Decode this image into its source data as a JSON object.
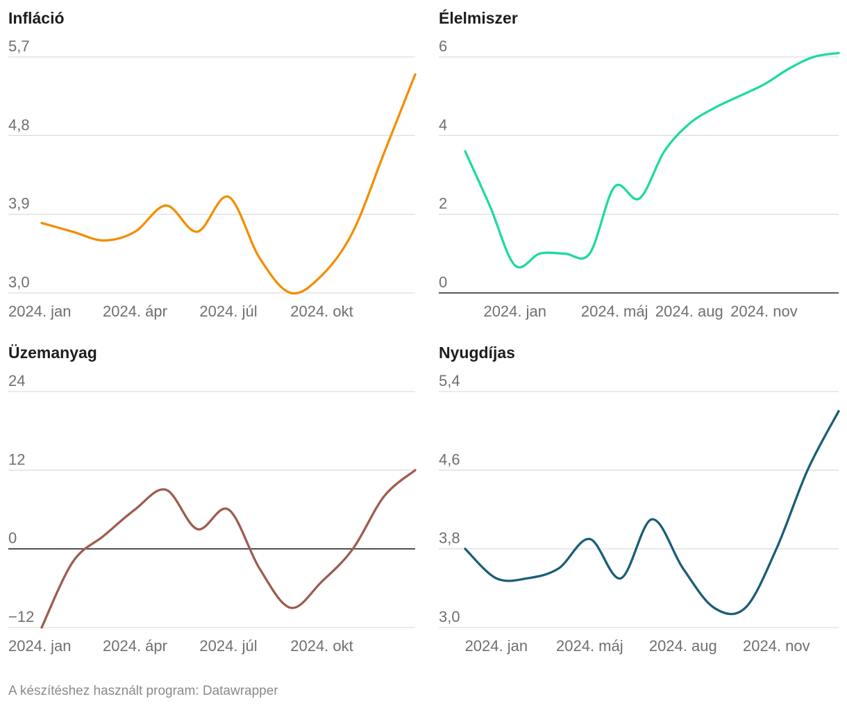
{
  "footer": {
    "credit": "A készítéshez használt program: Datawrapper"
  },
  "colors": {
    "grid": "#dedede",
    "zero_line": "#222222",
    "tick_text": "#6f6f6f",
    "title_text": "#1d1d1d"
  },
  "chart_data": [
    {
      "type": "line",
      "title": "Infláció",
      "color": "#f28e00",
      "ylim": [
        3.0,
        5.7
      ],
      "yticks": [
        "3,0",
        "3,9",
        "4,8",
        "5,7"
      ],
      "ytick_values": [
        3.0,
        3.9,
        4.8,
        5.7
      ],
      "xticks": [
        "2024. jan",
        "2024. ápr",
        "2024. júl",
        "2024. okt"
      ],
      "xtick_index": [
        0,
        3,
        6,
        9
      ],
      "xmax": 12,
      "x": [
        0,
        1,
        2,
        3,
        4,
        5,
        6,
        7,
        8,
        9,
        10,
        11,
        12
      ],
      "values": [
        3.8,
        3.7,
        3.6,
        3.7,
        4.0,
        3.7,
        4.1,
        3.4,
        3.0,
        3.2,
        3.7,
        4.6,
        5.5
      ],
      "grid": true
    },
    {
      "type": "line",
      "title": "Élelmiszer",
      "color": "#1ed9a4",
      "ylim": [
        0,
        6
      ],
      "yticks": [
        "0",
        "2",
        "4",
        "6"
      ],
      "ytick_values": [
        0,
        2,
        4,
        6
      ],
      "xticks": [
        "2024. jan",
        "2024. máj",
        "2024. aug",
        "2024. nov"
      ],
      "xtick_index": [
        2,
        6,
        9,
        12
      ],
      "xmax": 15,
      "x": [
        0,
        1,
        2,
        3,
        4,
        5,
        6,
        7,
        8,
        9,
        10,
        11,
        12,
        13,
        14,
        15
      ],
      "values": [
        3.6,
        2.2,
        0.7,
        1.0,
        1.0,
        1.0,
        2.7,
        2.4,
        3.6,
        4.3,
        4.7,
        5.0,
        5.3,
        5.7,
        6.0,
        6.1
      ],
      "grid": true,
      "zero_line": true
    },
    {
      "type": "line",
      "title": "Üzemanyag",
      "color": "#9c5d4f",
      "ylim": [
        -12,
        24
      ],
      "yticks": [
        "−12",
        "0",
        "12",
        "24"
      ],
      "ytick_values": [
        -12,
        0,
        12,
        24
      ],
      "xticks": [
        "2024. jan",
        "2024. ápr",
        "2024. júl",
        "2024. okt"
      ],
      "xtick_index": [
        0,
        3,
        6,
        9
      ],
      "xmax": 12,
      "x": [
        0,
        1,
        2,
        3,
        4,
        5,
        6,
        7,
        8,
        9,
        10,
        11,
        12
      ],
      "values": [
        -12,
        -2,
        2,
        6,
        9,
        3,
        6,
        -3,
        -9,
        -5,
        0,
        8,
        12
      ],
      "grid": true,
      "zero_line": true
    },
    {
      "type": "line",
      "title": "Nyugdíjas",
      "color": "#1a5d76",
      "ylim": [
        3.0,
        5.4
      ],
      "yticks": [
        "3,0",
        "3,8",
        "4,6",
        "5,4"
      ],
      "ytick_values": [
        3.0,
        3.8,
        4.6,
        5.4
      ],
      "xticks": [
        "2024. jan",
        "2024. máj",
        "2024. aug",
        "2024. nov"
      ],
      "xtick_index": [
        1,
        4,
        7,
        10
      ],
      "xmax": 12,
      "x": [
        0,
        1,
        2,
        3,
        4,
        5,
        6,
        7,
        8,
        9,
        10,
        11,
        12
      ],
      "values": [
        3.8,
        3.5,
        3.5,
        3.6,
        3.9,
        3.5,
        4.1,
        3.6,
        3.2,
        3.2,
        3.8,
        4.6,
        5.2
      ],
      "grid": true
    }
  ]
}
